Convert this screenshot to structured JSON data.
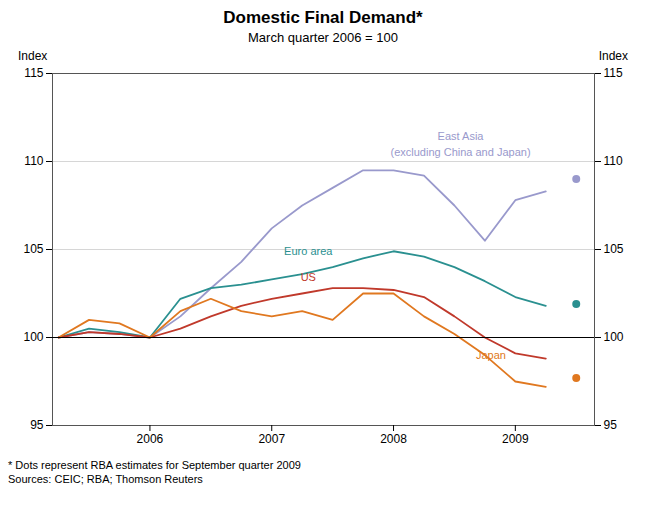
{
  "chart_data": {
    "type": "line",
    "title": "Domestic Final Demand*",
    "subtitle": "March quarter 2006 = 100",
    "ylabel": "Index",
    "y2label": "Index",
    "footnote": "*    Dots represent RBA estimates for September quarter 2009",
    "source": "Sources: CEIC; RBA; Thomson Reuters",
    "x": [
      2005.25,
      2005.5,
      2005.75,
      2006.0,
      2006.25,
      2006.5,
      2006.75,
      2007.0,
      2007.25,
      2007.5,
      2007.75,
      2008.0,
      2008.25,
      2008.5,
      2008.75,
      2009.0,
      2009.25
    ],
    "xlim": [
      2005.2,
      2009.65
    ],
    "xticks": [
      2006,
      2007,
      2008,
      2009
    ],
    "ylim": [
      95,
      115
    ],
    "yticks": [
      95,
      100,
      105,
      110,
      115
    ],
    "y2lim": [
      95,
      115
    ],
    "y2ticks": [
      95,
      100,
      105,
      110,
      115
    ],
    "grid": true,
    "hline": 100,
    "series": [
      {
        "name": "East Asia",
        "color": "#9999cc",
        "values": [
          100.0,
          100.3,
          100.2,
          100.0,
          101.2,
          102.8,
          104.3,
          106.2,
          107.5,
          108.5,
          109.5,
          109.5,
          109.2,
          107.5,
          105.5,
          107.8,
          108.3
        ],
        "estimate": {
          "x": 2009.5,
          "value": 109.0
        }
      },
      {
        "name": "Euro area",
        "color": "#2a9090",
        "values": [
          100.0,
          100.5,
          100.3,
          100.0,
          102.2,
          102.8,
          103.0,
          103.3,
          103.6,
          104.0,
          104.5,
          104.9,
          104.6,
          104.0,
          103.2,
          102.3,
          101.8
        ],
        "estimate": {
          "x": 2009.5,
          "value": 101.9
        }
      },
      {
        "name": "US",
        "color": "#c0392b",
        "values": [
          100.0,
          100.3,
          100.2,
          100.0,
          100.5,
          101.2,
          101.8,
          102.2,
          102.5,
          102.8,
          102.8,
          102.7,
          102.3,
          101.2,
          100.0,
          99.1,
          98.8
        ]
      },
      {
        "name": "Japan",
        "color": "#e07820",
        "values": [
          100.0,
          101.0,
          100.8,
          100.0,
          101.5,
          102.2,
          101.5,
          101.2,
          101.5,
          101.0,
          102.5,
          102.5,
          101.2,
          100.2,
          99.0,
          97.5,
          97.2
        ],
        "estimate": {
          "x": 2009.5,
          "value": 97.7
        }
      }
    ],
    "annotations": [
      {
        "text": "East Asia",
        "x": 2008.55,
        "y": 111.2,
        "color": "#9999cc"
      },
      {
        "text": "(excluding China and Japan)",
        "x": 2008.55,
        "y": 110.3,
        "color": "#9999cc"
      },
      {
        "text": "Euro area",
        "x": 2007.3,
        "y": 104.7,
        "color": "#2a9090"
      },
      {
        "text": "US",
        "x": 2007.3,
        "y": 103.2,
        "color": "#c0392b"
      },
      {
        "text": "Japan",
        "x": 2008.8,
        "y": 98.8,
        "color": "#e07820"
      }
    ]
  }
}
